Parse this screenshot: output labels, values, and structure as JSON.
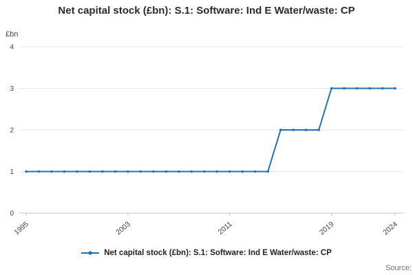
{
  "header": {
    "title": "Net capital stock (£bn): S.1: Software: Ind E Water/waste: CP"
  },
  "axes": {
    "y_unit": "£bn"
  },
  "legend": {
    "label": "Net capital stock (£bn): S.1: Software: Ind E Water/waste: CP"
  },
  "footer": {
    "source": "Source:"
  },
  "colors": {
    "line": "#1d70b8",
    "grid": "#e6e6e6",
    "axis": "#c2c2c2",
    "tick_text": "#414042",
    "title_text": "#2b2b2b",
    "muted": "#707071"
  },
  "chart_data": {
    "type": "line",
    "title": "Net capital stock (£bn): S.1: Software: Ind E Water/waste: CP",
    "xlabel": "",
    "ylabel": "£bn",
    "ylim": [
      0,
      4
    ],
    "yticks": [
      0,
      1,
      2,
      3,
      4
    ],
    "xticks": [
      1995,
      2003,
      2011,
      2019,
      2024
    ],
    "grid": true,
    "legend_position": "bottom",
    "x": [
      1995,
      1996,
      1997,
      1998,
      1999,
      2000,
      2001,
      2002,
      2003,
      2004,
      2005,
      2006,
      2007,
      2008,
      2009,
      2010,
      2011,
      2012,
      2013,
      2014,
      2015,
      2016,
      2017,
      2018,
      2019,
      2020,
      2021,
      2022,
      2023,
      2024
    ],
    "series": [
      {
        "name": "Net capital stock (£bn): S.1: Software: Ind E Water/waste: CP",
        "values": [
          1,
          1,
          1,
          1,
          1,
          1,
          1,
          1,
          1,
          1,
          1,
          1,
          1,
          1,
          1,
          1,
          1,
          1,
          1,
          1,
          2,
          2,
          2,
          2,
          3,
          3,
          3,
          3,
          3,
          3
        ]
      }
    ]
  }
}
